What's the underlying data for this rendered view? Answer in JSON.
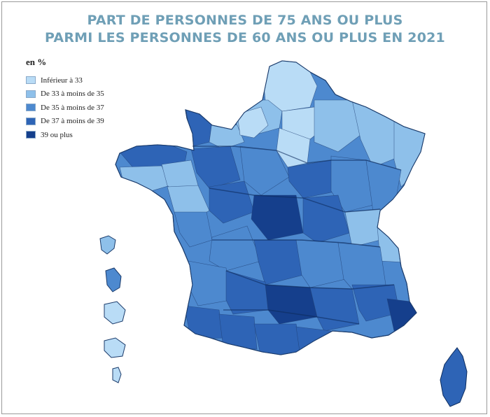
{
  "title": {
    "line1": "PART DE PERSONNES DE 75 ANS OU PLUS",
    "line2": "PARMI LES PERSONNES DE 60 ANS OU PLUS EN 2021"
  },
  "legend": {
    "unit": "en %",
    "classes": [
      {
        "label": "Inférieur à 33",
        "color": "#b9dcf6"
      },
      {
        "label": "De 33 à moins de 35",
        "color": "#8ec0ea"
      },
      {
        "label": "De 35 à moins de 37",
        "color": "#4d89cf"
      },
      {
        "label": "De 37 à moins de 39",
        "color": "#2e64b6"
      },
      {
        "label": "39 ou plus",
        "color": "#153f8c"
      }
    ]
  }
}
